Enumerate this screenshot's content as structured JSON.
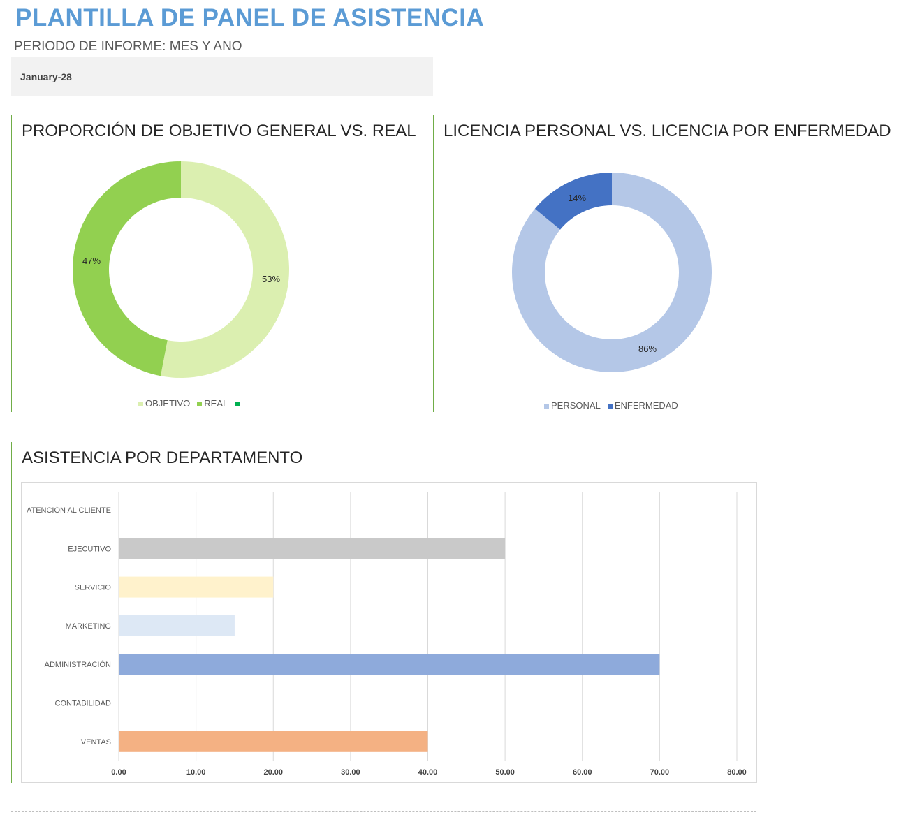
{
  "header": {
    "title": "PLANTILLA DE PANEL DE ASISTENCIA",
    "subtitle": "PERIODO DE INFORME: MES Y ANO",
    "period_value": "January-28"
  },
  "chart_data": [
    {
      "type": "pie",
      "title": "PROPORCIÓN DE OBJETIVO GENERAL VS. REAL",
      "donut": true,
      "slices": [
        {
          "name": "OBJETIVO",
          "value": 53,
          "label": "53%",
          "color": "#dbefb0"
        },
        {
          "name": "REAL",
          "value": 47,
          "label": "47%",
          "color": "#92d050"
        }
      ],
      "extra_legend_color": "#00b050",
      "legend": "bottom"
    },
    {
      "type": "pie",
      "title": "LICENCIA PERSONAL VS. LICENCIA POR ENFERMEDAD",
      "donut": true,
      "slices": [
        {
          "name": "PERSONAL",
          "value": 86,
          "label": "86%",
          "color": "#b4c7e7"
        },
        {
          "name": "ENFERMEDAD",
          "value": 14,
          "label": "14%",
          "color": "#4472c4"
        }
      ],
      "legend": "bottom"
    },
    {
      "type": "bar",
      "orientation": "horizontal",
      "title": "ASISTENCIA POR DEPARTAMENTO",
      "categories": [
        "ATENCIÓN AL CLIENTE",
        "EJECUTIVO",
        "SERVICIO",
        "MARKETING",
        "ADMINISTRACIÓN",
        "CONTABILIDAD",
        "VENTAS"
      ],
      "values": [
        0,
        50,
        20,
        15,
        70,
        0,
        40
      ],
      "colors": [
        "#a5a5a5",
        "#c9c9c9",
        "#fff2cc",
        "#dde8f5",
        "#8eaadb",
        "#c5e0b4",
        "#f4b183"
      ],
      "xlim": [
        0,
        80
      ],
      "xticks": [
        "0.00",
        "10.00",
        "20.00",
        "30.00",
        "40.00",
        "50.00",
        "60.00",
        "70.00",
        "80.00"
      ],
      "grid": true
    }
  ]
}
